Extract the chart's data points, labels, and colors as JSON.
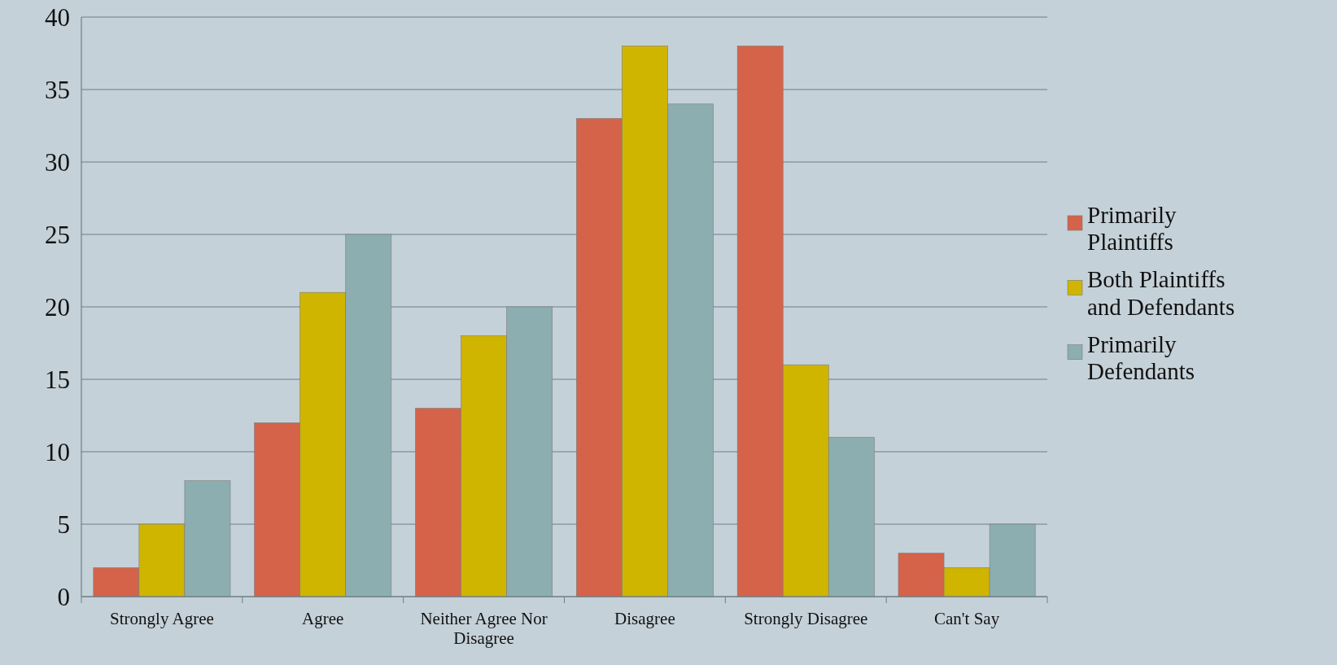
{
  "chart_data": {
    "type": "bar",
    "categories": [
      "Strongly Agree",
      "Agree",
      "Neither Agree Nor Disagree",
      "Disagree",
      "Strongly Disagree",
      "Can't Say"
    ],
    "series": [
      {
        "name": "Primarily Plaintiffs",
        "color": "#d4634a",
        "values": [
          2,
          12,
          13,
          33,
          38,
          3
        ]
      },
      {
        "name": "Both Plaintiffs and Defendants",
        "color": "#cfb400",
        "values": [
          5,
          21,
          18,
          38,
          16,
          2
        ]
      },
      {
        "name": "Primarily Defendants",
        "color": "#8caeb0",
        "values": [
          8,
          25,
          20,
          34,
          11,
          5
        ]
      }
    ],
    "ylim": [
      0,
      40
    ],
    "yticks": [
      0,
      5,
      10,
      15,
      20,
      25,
      30,
      35,
      40
    ],
    "grid": "y",
    "legend": "right"
  }
}
